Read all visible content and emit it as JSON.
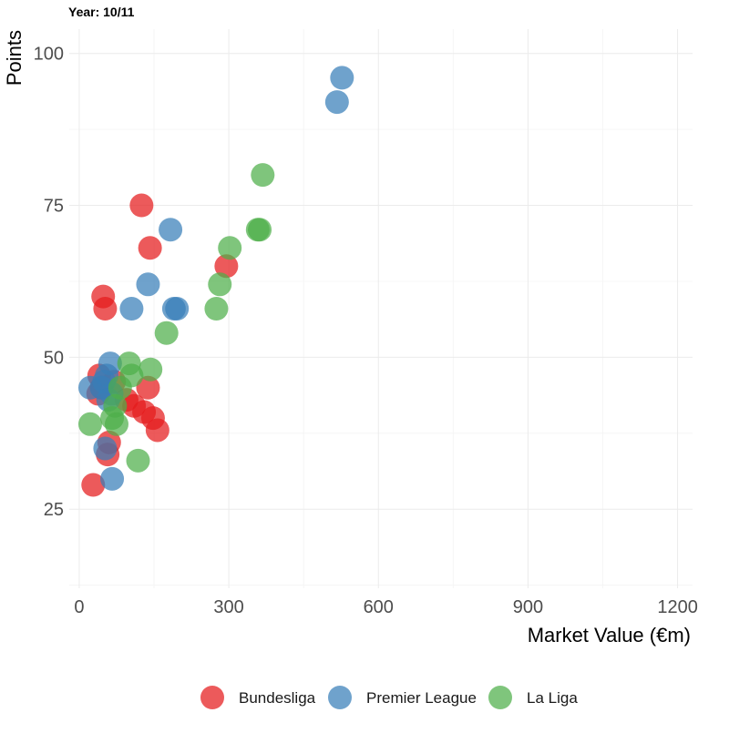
{
  "chart_data": {
    "type": "scatter",
    "title": "Year: 10/11",
    "xlabel": "Market Value (€m)",
    "ylabel": "Points",
    "xlim": [
      -20,
      1230
    ],
    "ylim": [
      12,
      104
    ],
    "x_ticks": [
      0,
      300,
      600,
      900,
      1200
    ],
    "x_tick_labels": [
      "0",
      "300",
      "600",
      "900",
      "1200"
    ],
    "y_ticks": [
      25,
      50,
      75,
      100
    ],
    "y_tick_labels": [
      "25",
      "50",
      "75",
      "100"
    ],
    "grid": true,
    "legend_position": "bottom",
    "series": [
      {
        "name": "Bundesliga",
        "color": "#e41a1c",
        "points": [
          {
            "x": 125,
            "y": 75
          },
          {
            "x": 142,
            "y": 68
          },
          {
            "x": 295,
            "y": 65
          },
          {
            "x": 48,
            "y": 60
          },
          {
            "x": 52,
            "y": 58
          },
          {
            "x": 40,
            "y": 47
          },
          {
            "x": 45,
            "y": 45
          },
          {
            "x": 38,
            "y": 44
          },
          {
            "x": 70,
            "y": 46
          },
          {
            "x": 95,
            "y": 43
          },
          {
            "x": 110,
            "y": 42
          },
          {
            "x": 130,
            "y": 41
          },
          {
            "x": 138,
            "y": 45
          },
          {
            "x": 148,
            "y": 40
          },
          {
            "x": 157,
            "y": 38
          },
          {
            "x": 60,
            "y": 36
          },
          {
            "x": 57,
            "y": 34
          },
          {
            "x": 28,
            "y": 29
          }
        ]
      },
      {
        "name": "Premier League",
        "color": "#377eb8",
        "points": [
          {
            "x": 527,
            "y": 96
          },
          {
            "x": 517,
            "y": 92
          },
          {
            "x": 183,
            "y": 71
          },
          {
            "x": 138,
            "y": 62
          },
          {
            "x": 105,
            "y": 58
          },
          {
            "x": 190,
            "y": 58
          },
          {
            "x": 196,
            "y": 58
          },
          {
            "x": 62,
            "y": 49
          },
          {
            "x": 55,
            "y": 47
          },
          {
            "x": 50,
            "y": 46
          },
          {
            "x": 22,
            "y": 45
          },
          {
            "x": 45,
            "y": 45
          },
          {
            "x": 65,
            "y": 44
          },
          {
            "x": 58,
            "y": 43
          },
          {
            "x": 52,
            "y": 35
          },
          {
            "x": 66,
            "y": 30
          }
        ]
      },
      {
        "name": "La Liga",
        "color": "#4daf4a",
        "points": [
          {
            "x": 368,
            "y": 80
          },
          {
            "x": 358,
            "y": 71
          },
          {
            "x": 362,
            "y": 71
          },
          {
            "x": 302,
            "y": 68
          },
          {
            "x": 282,
            "y": 62
          },
          {
            "x": 275,
            "y": 58
          },
          {
            "x": 175,
            "y": 54
          },
          {
            "x": 100,
            "y": 49
          },
          {
            "x": 143,
            "y": 48
          },
          {
            "x": 105,
            "y": 47
          },
          {
            "x": 82,
            "y": 45
          },
          {
            "x": 72,
            "y": 42
          },
          {
            "x": 66,
            "y": 40
          },
          {
            "x": 75,
            "y": 39
          },
          {
            "x": 22,
            "y": 39
          },
          {
            "x": 118,
            "y": 33
          }
        ]
      }
    ]
  }
}
